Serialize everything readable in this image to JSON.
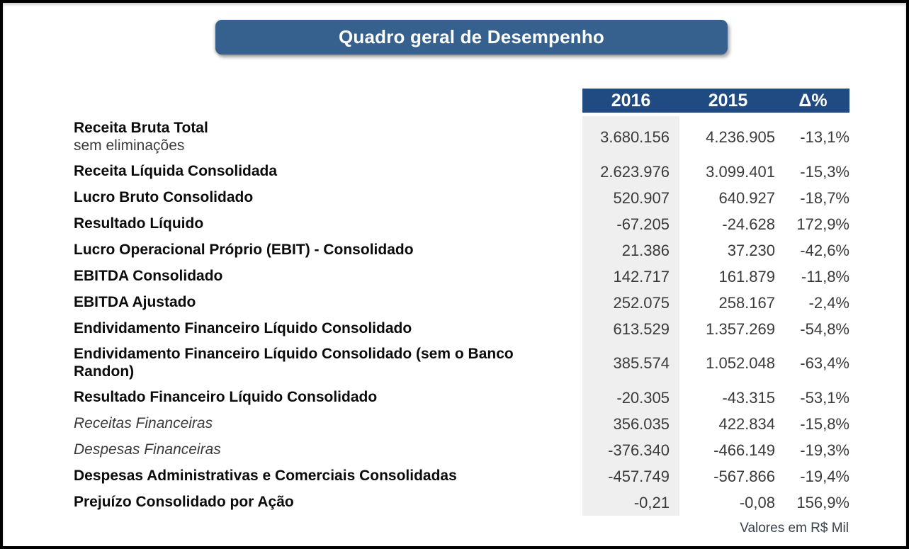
{
  "page": {
    "title": "Quadro geral de Desempenho",
    "footnote": "Valores em R$ Mil"
  },
  "colors": {
    "banner_blue": "#36618F",
    "header_blue": "#1F4A82",
    "column_highlight_gray": "#F0EFEF",
    "frame_black": "#000000"
  },
  "table": {
    "columns": [
      "2016",
      "2015",
      "Δ%"
    ],
    "rows": [
      {
        "label": "Receita Bruta Total",
        "sublabel": "sem eliminações",
        "v2016": "3.680.156",
        "v2015": "4.236.905",
        "delta": "-13,1%"
      },
      {
        "label": "Receita Líquida Consolidada",
        "v2016": "2.623.976",
        "v2015": "3.099.401",
        "delta": "-15,3%"
      },
      {
        "label": "Lucro Bruto Consolidado",
        "v2016": "520.907",
        "v2015": "640.927",
        "delta": "-18,7%"
      },
      {
        "label": "Resultado Líquido",
        "v2016": "-67.205",
        "v2015": "-24.628",
        "delta": "172,9%"
      },
      {
        "label": "Lucro Operacional Próprio (EBIT) - Consolidado",
        "v2016": "21.386",
        "v2015": "37.230",
        "delta": "-42,6%"
      },
      {
        "label": "EBITDA Consolidado",
        "v2016": "142.717",
        "v2015": "161.879",
        "delta": "-11,8%"
      },
      {
        "label": "EBITDA Ajustado",
        "v2016": "252.075",
        "v2015": "258.167",
        "delta": "-2,4%"
      },
      {
        "label": "Endividamento Financeiro Líquido Consolidado",
        "v2016": "613.529",
        "v2015": "1.357.269",
        "delta": "-54,8%"
      },
      {
        "label": "Endividamento Financeiro Líquido Consolidado (sem o Banco Randon)",
        "v2016": "385.574",
        "v2015": "1.052.048",
        "delta": "-63,4%"
      },
      {
        "label": "Resultado Financeiro Líquido Consolidado",
        "v2016": "-20.305",
        "v2015": "-43.315",
        "delta": "-53,1%"
      },
      {
        "label": "Receitas Financeiras",
        "v2016": "356.035",
        "v2015": "422.834",
        "delta": "-15,8%"
      },
      {
        "label": "Despesas Financeiras",
        "v2016": "-376.340",
        "v2015": "-466.149",
        "delta": "-19,3%"
      },
      {
        "label": "Despesas Administrativas e Comerciais Consolidadas",
        "v2016": "-457.749",
        "v2015": "-567.866",
        "delta": "-19,4%"
      },
      {
        "label": "Prejuízo Consolidado por Ação",
        "v2016": "-0,21",
        "v2015": "-0,08",
        "delta": "156,9%"
      }
    ]
  }
}
